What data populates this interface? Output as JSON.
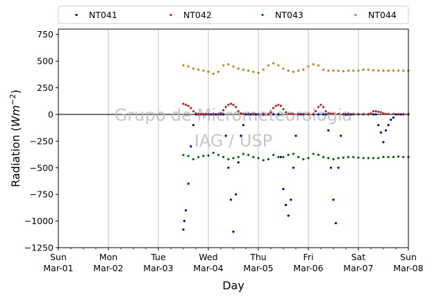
{
  "chart_data": {
    "type": "scatter",
    "xlabel": "Day",
    "ylabel_prefix": "Radiation (",
    "ylabel_unit": "Wm",
    "ylabel_exp": "−2",
    "ylabel_suffix": ")",
    "ylim": [
      -1250,
      800
    ],
    "yticks": [
      -1250,
      -1000,
      -750,
      -500,
      -250,
      0,
      250,
      500,
      750
    ],
    "ytick_labels": [
      "−1250",
      "−1000",
      "−750",
      "−500",
      "−250",
      "0",
      "250",
      "500",
      "750"
    ],
    "xlim": [
      0,
      7
    ],
    "xticks": [
      {
        "line1": "Sun",
        "line2": "Mar-01"
      },
      {
        "line1": "Mon",
        "line2": "Mar-02"
      },
      {
        "line1": "Tue",
        "line2": "Mar-03"
      },
      {
        "line1": "Wed",
        "line2": "Mar-04"
      },
      {
        "line1": "Thu",
        "line2": "Mar-05"
      },
      {
        "line1": "Fri",
        "line2": "Mar-06"
      },
      {
        "line1": "Sat",
        "line2": "Mar-07"
      },
      {
        "line1": "Sun",
        "line2": "Mar-08"
      }
    ],
    "grid": "vertical",
    "legend_position": "top",
    "watermark_line1": "Grupo de Micrometeorologia",
    "watermark_line2": "IAG / USP",
    "zero_line": true,
    "series": [
      {
        "name": "NT041",
        "color": "#00008b",
        "x": [
          2.5,
          2.52,
          2.55,
          2.6,
          2.65,
          2.7,
          2.75,
          2.8,
          2.85,
          2.9,
          2.95,
          3.0,
          3.05,
          3.1,
          3.15,
          3.2,
          3.25,
          3.3,
          3.35,
          3.4,
          3.45,
          3.5,
          3.55,
          3.6,
          3.65,
          3.7,
          3.75,
          3.8,
          3.85,
          3.9,
          3.95,
          4.0,
          4.1,
          4.2,
          4.3,
          4.4,
          4.45,
          4.5,
          4.55,
          4.6,
          4.65,
          4.7,
          4.75,
          4.8,
          4.85,
          4.9,
          5.0,
          5.1,
          5.2,
          5.3,
          5.35,
          5.4,
          5.45,
          5.5,
          5.55,
          5.6,
          5.65,
          5.7,
          5.75,
          5.8,
          5.85,
          5.9,
          6.0,
          6.1,
          6.2,
          6.3,
          6.35,
          6.4,
          6.45,
          6.5,
          6.55,
          6.6,
          6.65,
          6.7,
          6.75,
          6.8,
          6.85,
          6.9,
          7.0
        ],
        "y": [
          -1080,
          -1000,
          -900,
          -650,
          -300,
          -100,
          0,
          0,
          0,
          0,
          0,
          0,
          0,
          0,
          0,
          0,
          0,
          0,
          -200,
          -500,
          -800,
          -1100,
          -750,
          -450,
          -200,
          -100,
          0,
          0,
          0,
          0,
          0,
          0,
          0,
          0,
          0,
          0,
          -400,
          -700,
          -850,
          -950,
          -800,
          -500,
          -200,
          0,
          0,
          0,
          0,
          0,
          0,
          0,
          0,
          -150,
          -500,
          -800,
          -1020,
          -500,
          -200,
          0,
          0,
          0,
          0,
          0,
          0,
          0,
          0,
          0,
          0,
          -100,
          -170,
          -260,
          -150,
          -100,
          -50,
          -30,
          0,
          0,
          0,
          0,
          0
        ]
      },
      {
        "name": "NT042",
        "color": "#a52a2a",
        "x": [
          2.5,
          2.55,
          2.6,
          2.65,
          2.7,
          2.75,
          2.8,
          2.85,
          2.9,
          2.95,
          3.0,
          3.1,
          3.2,
          3.25,
          3.3,
          3.35,
          3.4,
          3.45,
          3.5,
          3.55,
          3.6,
          3.65,
          3.7,
          3.8,
          3.9,
          4.0,
          4.1,
          4.2,
          4.25,
          4.3,
          4.35,
          4.4,
          4.45,
          4.5,
          4.55,
          4.6,
          4.65,
          4.7,
          4.8,
          4.9,
          5.0,
          5.1,
          5.15,
          5.2,
          5.25,
          5.3,
          5.35,
          5.4,
          5.45,
          5.5,
          5.6,
          5.7,
          5.8,
          5.9,
          6.0,
          6.1,
          6.2,
          6.25,
          6.3,
          6.35,
          6.4,
          6.45,
          6.5,
          6.55,
          6.6,
          6.7,
          6.8,
          6.9,
          7.0
        ],
        "y": [
          100,
          90,
          80,
          60,
          30,
          10,
          5,
          5,
          5,
          5,
          5,
          5,
          5,
          10,
          40,
          70,
          90,
          100,
          90,
          70,
          30,
          10,
          5,
          5,
          5,
          5,
          5,
          5,
          20,
          60,
          80,
          90,
          80,
          50,
          20,
          5,
          5,
          5,
          5,
          5,
          5,
          5,
          30,
          70,
          90,
          70,
          30,
          10,
          5,
          5,
          5,
          5,
          5,
          5,
          5,
          5,
          5,
          10,
          30,
          30,
          25,
          20,
          10,
          5,
          5,
          5,
          5,
          5,
          5
        ]
      },
      {
        "name": "NT043",
        "color": "#006400",
        "x": [
          2.5,
          2.6,
          2.7,
          2.8,
          2.9,
          3.0,
          3.1,
          3.2,
          3.3,
          3.4,
          3.5,
          3.6,
          3.7,
          3.8,
          3.9,
          4.0,
          4.1,
          4.2,
          4.3,
          4.4,
          4.5,
          4.6,
          4.7,
          4.8,
          4.9,
          5.0,
          5.1,
          5.2,
          5.3,
          5.4,
          5.5,
          5.6,
          5.7,
          5.8,
          5.9,
          6.0,
          6.1,
          6.2,
          6.3,
          6.4,
          6.5,
          6.6,
          6.7,
          6.8,
          6.9,
          7.0
        ],
        "y": [
          -380,
          -390,
          -420,
          -400,
          -390,
          -385,
          -360,
          -380,
          -400,
          -420,
          -410,
          -400,
          -370,
          -380,
          -400,
          -410,
          -430,
          -420,
          -380,
          -400,
          -400,
          -380,
          -370,
          -400,
          -420,
          -410,
          -370,
          -380,
          -400,
          -410,
          -420,
          -410,
          -405,
          -400,
          -400,
          -405,
          -410,
          -410,
          -410,
          -410,
          -400,
          -400,
          -400,
          -395,
          -400,
          -400
        ]
      },
      {
        "name": "NT044",
        "color": "#b8860b",
        "x": [
          2.5,
          2.6,
          2.7,
          2.8,
          2.9,
          3.0,
          3.1,
          3.2,
          3.3,
          3.4,
          3.5,
          3.6,
          3.7,
          3.8,
          3.9,
          4.0,
          4.1,
          4.2,
          4.3,
          4.4,
          4.5,
          4.6,
          4.7,
          4.8,
          4.9,
          5.0,
          5.1,
          5.2,
          5.3,
          5.4,
          5.5,
          5.6,
          5.7,
          5.8,
          5.9,
          6.0,
          6.1,
          6.2,
          6.3,
          6.4,
          6.5,
          6.6,
          6.7,
          6.8,
          6.9,
          7.0
        ],
        "y": [
          460,
          450,
          430,
          420,
          410,
          400,
          380,
          400,
          460,
          470,
          450,
          430,
          420,
          410,
          400,
          390,
          420,
          460,
          480,
          460,
          430,
          410,
          400,
          410,
          420,
          450,
          470,
          460,
          420,
          410,
          410,
          410,
          405,
          410,
          410,
          410,
          420,
          420,
          415,
          410,
          410,
          410,
          410,
          410,
          410,
          410
        ]
      }
    ]
  }
}
